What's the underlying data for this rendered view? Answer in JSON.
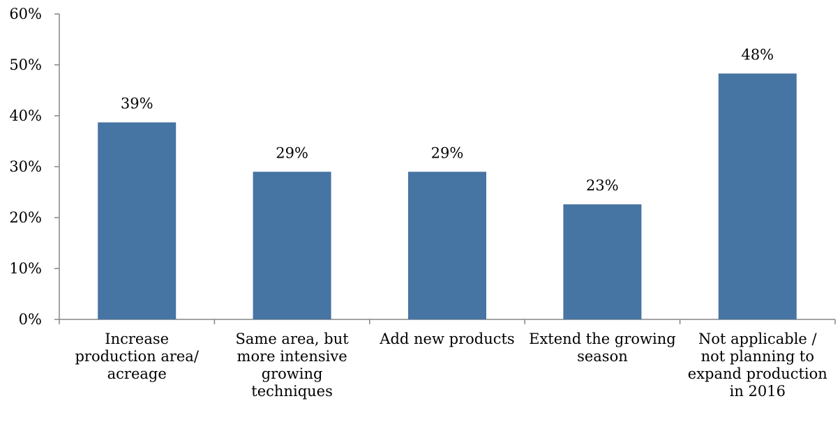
{
  "chart_data": {
    "type": "bar",
    "categories": [
      [
        "Increase",
        "production area/",
        "acreage"
      ],
      [
        "Same area, but",
        "more intensive",
        "growing",
        "techniques"
      ],
      [
        "Add new products"
      ],
      [
        "Extend the growing",
        "season"
      ],
      [
        "Not applicable /",
        "not planning to",
        "expand production",
        "in 2016"
      ]
    ],
    "values": [
      0.387,
      0.29,
      0.29,
      0.226,
      0.483
    ],
    "data_labels": [
      "39%",
      "29%",
      "29%",
      "23%",
      "48%"
    ],
    "y_ticks": [
      {
        "value": 0,
        "label": "0%"
      },
      {
        "value": 0.1,
        "label": "10%"
      },
      {
        "value": 0.2,
        "label": "20%"
      },
      {
        "value": 0.3,
        "label": "30%"
      },
      {
        "value": 0.4,
        "label": "40%"
      },
      {
        "value": 0.5,
        "label": "50%"
      },
      {
        "value": 0.6,
        "label": "60%"
      }
    ],
    "ylim": [
      0,
      0.6
    ],
    "title": "",
    "xlabel": "",
    "ylabel": "",
    "grid": false,
    "legend": "none",
    "bar_color": "#4674A3",
    "axis_color": "#868686"
  }
}
